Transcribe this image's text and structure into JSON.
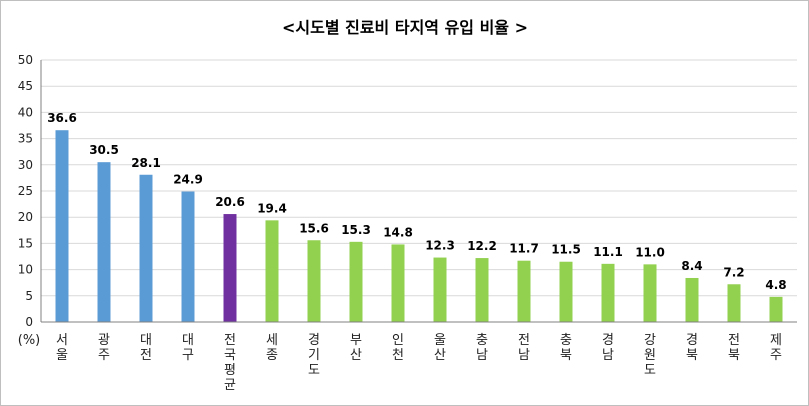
{
  "chart_data": {
    "type": "bar",
    "title": "<시도별 진료비 타지역 유입 비율 >",
    "unit_label": "(%)",
    "ylim": [
      0,
      50
    ],
    "yticks": [
      0,
      5,
      10,
      15,
      20,
      25,
      30,
      35,
      40,
      45,
      50
    ],
    "grid": true,
    "categories": [
      "서울",
      "광주",
      "대전",
      "대구",
      "전국평균",
      "세종",
      "경기도",
      "부산",
      "인천",
      "울산",
      "충남",
      "전남",
      "충북",
      "경남",
      "강원도",
      "경북",
      "전북",
      "제주"
    ],
    "values": [
      36.6,
      30.5,
      28.1,
      24.9,
      20.6,
      19.4,
      15.6,
      15.3,
      14.8,
      12.3,
      12.2,
      11.7,
      11.5,
      11.1,
      11.0,
      8.4,
      7.2,
      4.8
    ],
    "value_labels": [
      "36.6",
      "30.5",
      "28.1",
      "24.9",
      "20.6",
      "19.4",
      "15.6",
      "15.3",
      "14.8",
      "12.3",
      "12.2",
      "11.7",
      "11.5",
      "11.1",
      "11.0",
      "8.4",
      "7.2",
      "4.8"
    ],
    "colors": {
      "above": "#5b9bd5",
      "average": "#7030a0",
      "below": "#92d050",
      "grid": "#d9d9d9",
      "axis": "#808080"
    },
    "bar_groups": [
      "above",
      "above",
      "above",
      "above",
      "average",
      "below",
      "below",
      "below",
      "below",
      "below",
      "below",
      "below",
      "below",
      "below",
      "below",
      "below",
      "below",
      "below"
    ]
  }
}
